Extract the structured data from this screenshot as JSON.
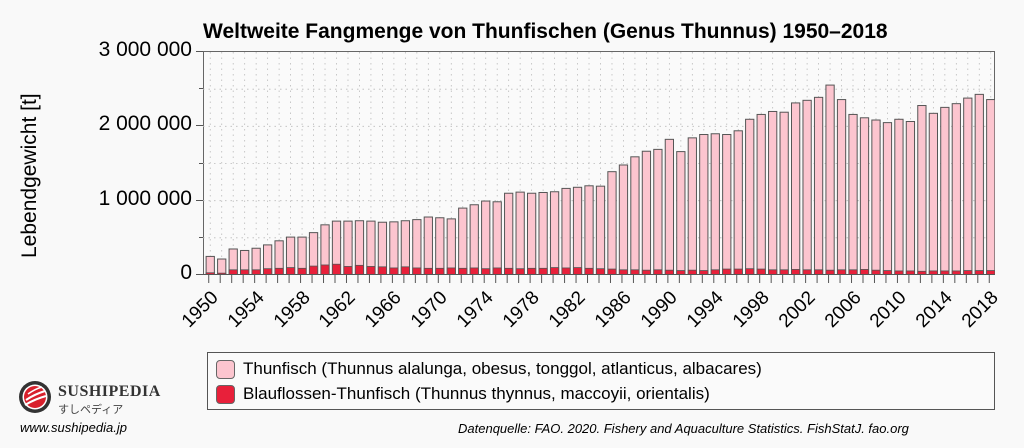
{
  "chart_data": {
    "type": "bar",
    "stacked": true,
    "title": "Weltweite Fangmenge von Thunfischen (Genus Thunnus) 1950–2018",
    "xlabel": "",
    "ylabel": "Lebendgewicht [t]",
    "ylim": [
      0,
      3000000
    ],
    "yticks": [
      0,
      1000000,
      2000000,
      3000000
    ],
    "ytick_labels": [
      "0",
      "1 000 000",
      "2 000 000",
      "3 000 000"
    ],
    "xtick_labels": [
      "1950",
      "1954",
      "1958",
      "1962",
      "1966",
      "1970",
      "1974",
      "1978",
      "1982",
      "1986",
      "1990",
      "1994",
      "1998",
      "2002",
      "2006",
      "2010",
      "2014",
      "2018"
    ],
    "grid": true,
    "legend_position": "bottom",
    "categories": [
      1950,
      1951,
      1952,
      1953,
      1954,
      1955,
      1956,
      1957,
      1958,
      1959,
      1960,
      1961,
      1962,
      1963,
      1964,
      1965,
      1966,
      1967,
      1968,
      1969,
      1970,
      1971,
      1972,
      1973,
      1974,
      1975,
      1976,
      1977,
      1978,
      1979,
      1980,
      1981,
      1982,
      1983,
      1984,
      1985,
      1986,
      1987,
      1988,
      1989,
      1990,
      1991,
      1992,
      1993,
      1994,
      1995,
      1996,
      1997,
      1998,
      1999,
      2000,
      2001,
      2002,
      2003,
      2004,
      2005,
      2006,
      2007,
      2008,
      2009,
      2010,
      2011,
      2012,
      2013,
      2014,
      2015,
      2016,
      2017,
      2018
    ],
    "series": [
      {
        "name": "Blauflossen-Thunfisch (Thunnus thynnus, maccoyii, orientalis)",
        "color": "#e8203a",
        "values": [
          30000,
          25000,
          70000,
          70000,
          70000,
          85000,
          90000,
          100000,
          90000,
          120000,
          135000,
          145000,
          115000,
          130000,
          115000,
          110000,
          95000,
          110000,
          95000,
          90000,
          90000,
          95000,
          90000,
          95000,
          85000,
          95000,
          90000,
          85000,
          90000,
          90000,
          100000,
          95000,
          100000,
          90000,
          85000,
          80000,
          70000,
          70000,
          65000,
          70000,
          65000,
          60000,
          65000,
          60000,
          70000,
          80000,
          80000,
          85000,
          80000,
          70000,
          70000,
          75000,
          70000,
          70000,
          65000,
          70000,
          70000,
          75000,
          65000,
          60000,
          55000,
          55000,
          50000,
          55000,
          55000,
          55000,
          60000,
          60000,
          60000
        ]
      },
      {
        "name": "Thunfisch (Thunnus alalunga, obesus, tonggol, atlanticus, albacares)",
        "color": "#fcc5cf",
        "values": [
          220000,
          190000,
          280000,
          260000,
          290000,
          320000,
          370000,
          410000,
          420000,
          450000,
          540000,
          580000,
          610000,
          600000,
          610000,
          600000,
          620000,
          620000,
          650000,
          690000,
          680000,
          660000,
          810000,
          850000,
          910000,
          890000,
          1010000,
          1030000,
          1010000,
          1020000,
          1020000,
          1070000,
          1080000,
          1110000,
          1110000,
          1310000,
          1410000,
          1520000,
          1600000,
          1620000,
          1760000,
          1600000,
          1780000,
          1830000,
          1830000,
          1810000,
          1860000,
          2010000,
          2080000,
          2130000,
          2120000,
          2240000,
          2280000,
          2320000,
          2490000,
          2290000,
          2090000,
          2040000,
          2020000,
          1990000,
          2040000,
          2010000,
          2230000,
          2120000,
          2200000,
          2250000,
          2320000,
          2370000,
          2300000
        ]
      }
    ]
  },
  "legend": {
    "items": [
      {
        "label": "Thunfisch (Thunnus alalunga, obesus, tonggol, atlanticus, albacares)",
        "color": "#fcc5cf"
      },
      {
        "label": "Blauflossen-Thunfisch (Thunnus thynnus, maccoyii, orientalis)",
        "color": "#e8203a"
      }
    ]
  },
  "branding": {
    "name": "SUSHIPEDIA",
    "name_jp": "すしペディア",
    "url": "www.sushipedia.jp",
    "logo_icon": "sushi-roll-logo-icon"
  },
  "source": "Datenquelle: FAO. 2020. Fishery and Aquaculture Statistics. FishStatJ. fao.org"
}
